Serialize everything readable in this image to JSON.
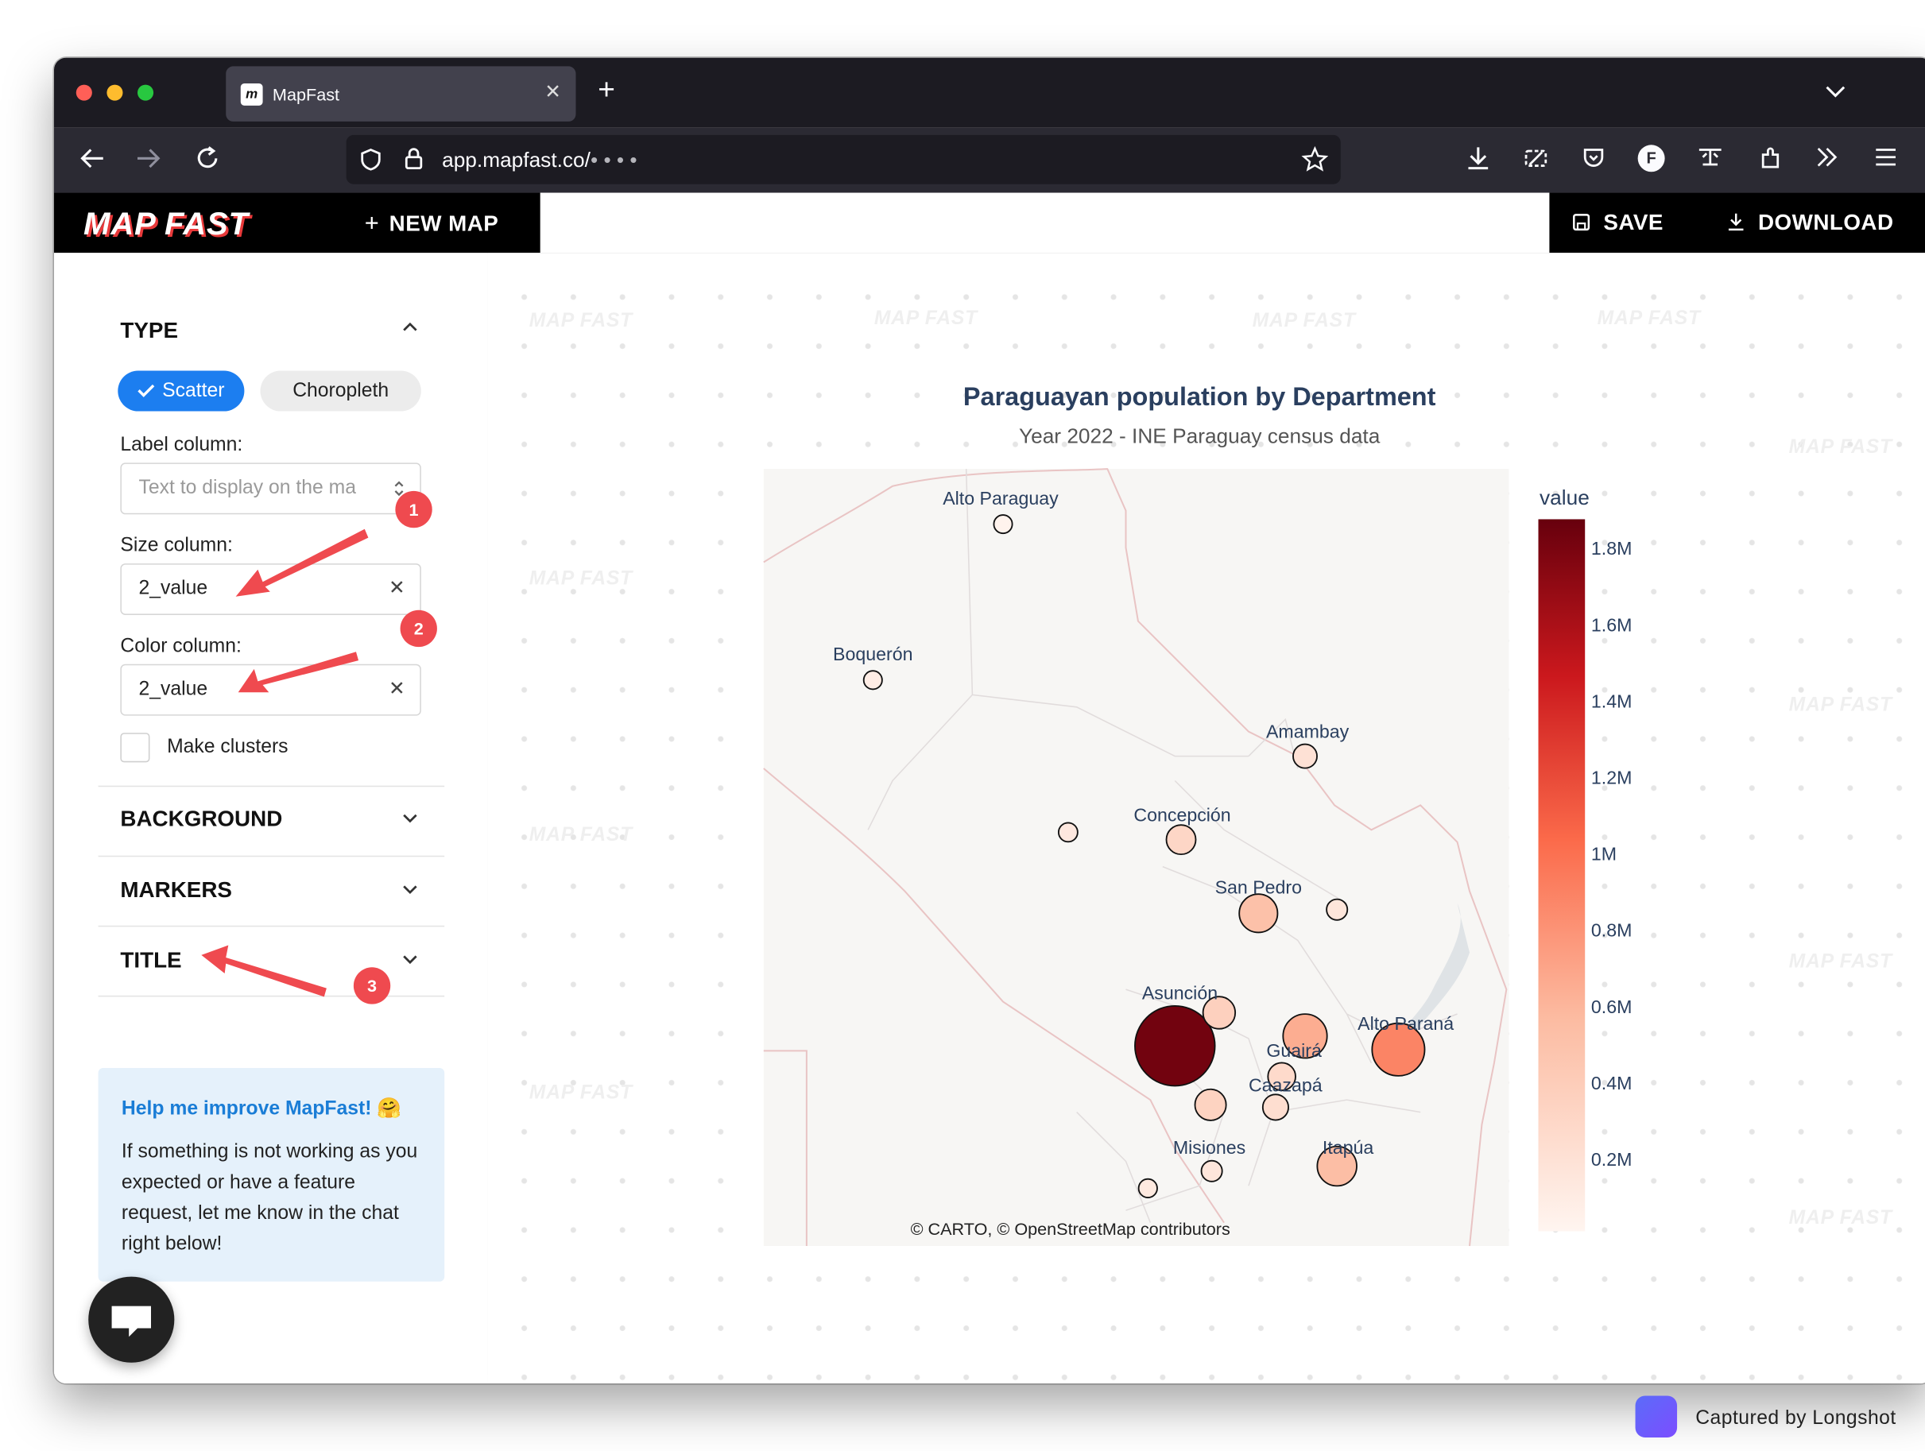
{
  "browser": {
    "tab_title": "MapFast",
    "url_host": "app.mapfast.co/",
    "url_path_masked": "• • • •"
  },
  "app": {
    "logo": "MAP FAST",
    "new_map_label": "NEW MAP",
    "save_label": "SAVE",
    "download_label": "DOWNLOAD"
  },
  "sidebar": {
    "type_header": "TYPE",
    "type_options": [
      "Scatter",
      "Choropleth"
    ],
    "type_selected": "Scatter",
    "label_column_label": "Label column:",
    "label_column_placeholder": "Text to display on the ma",
    "size_column_label": "Size column:",
    "size_column_value": "2_value",
    "color_column_label": "Color column:",
    "color_column_value": "2_value",
    "make_clusters_label": "Make clusters",
    "make_clusters_checked": false,
    "sections": [
      "BACKGROUND",
      "MARKERS",
      "TITLE"
    ],
    "help_title": "Help me improve MapFast! 🤗",
    "help_body": "If something is not working as you expected or have a feature request, let me know in the chat right below!"
  },
  "annotations": [
    "1",
    "2",
    "3"
  ],
  "watermark": "MAP FAST",
  "map": {
    "title": "Paraguayan population by Department",
    "subtitle": "Year 2022 - INE Paraguay census data",
    "attribution": "© CARTO, © OpenStreetMap contributors",
    "colorbar_title": "value",
    "colorbar_ticks": [
      "1.8M",
      "1.6M",
      "1.4M",
      "1.2M",
      "1M",
      "0.8M",
      "0.6M",
      "0.4M",
      "0.2M"
    ],
    "colorscale": [
      "#fff5f0",
      "#fcbba1",
      "#fb6a4a",
      "#cb181d",
      "#67000d"
    ]
  },
  "chart_data": {
    "type": "scatter",
    "title": "Paraguayan population by Department",
    "subtitle": "Year 2022 - INE Paraguay census data",
    "color_scale_label": "value",
    "color_range": [
      0,
      1900000
    ],
    "points": [
      {
        "label": "Alto Paraguay",
        "value": 17000
      },
      {
        "label": "Boquerón",
        "value": 65000
      },
      {
        "label": "Amambay",
        "value": 165000
      },
      {
        "label": "Concepción",
        "value": 250000
      },
      {
        "label": "San Pedro",
        "value": 425000
      },
      {
        "label": "Asunción",
        "value": 1850000
      },
      {
        "label": "Guairá",
        "value": 220000
      },
      {
        "label": "Caazapá",
        "value": 190000
      },
      {
        "label": "Alto Paraná",
        "value": 800000
      },
      {
        "label": "Misiones",
        "value": 125000
      },
      {
        "label": "Itapúa",
        "value": 450000
      },
      {
        "label": "",
        "value": 105000
      },
      {
        "label": "",
        "value": 125000
      },
      {
        "label": "",
        "value": 300000
      },
      {
        "label": "",
        "value": 560000
      },
      {
        "label": "",
        "value": 280000
      },
      {
        "label": "",
        "value": 100000
      }
    ]
  },
  "footer": {
    "captured_by": "Captured by Longshot"
  }
}
